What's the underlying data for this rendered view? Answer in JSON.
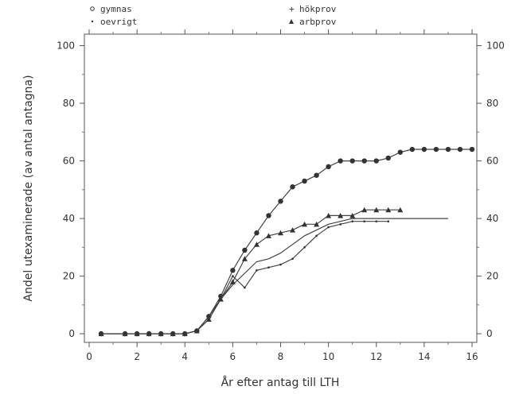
{
  "chart_data": {
    "type": "line",
    "title": "",
    "xlabel": "År efter antag till LTH",
    "ylabel": "Andel utexaminerade (av antal antagna)",
    "xlim": [
      -0.2,
      16.2
    ],
    "ylim": [
      -3,
      104
    ],
    "xticks": [
      0,
      2,
      4,
      6,
      8,
      10,
      12,
      14,
      16
    ],
    "yticks": [
      0,
      20,
      40,
      60,
      80,
      100
    ],
    "grid": false,
    "legend_position": "top",
    "series": [
      {
        "name": "gymnas",
        "marker": "circle",
        "x": [
          0.5,
          1.5,
          2,
          2.5,
          3,
          3.5,
          4,
          4.5,
          5,
          5.5,
          6,
          6.5,
          7,
          7.5,
          8,
          8.5,
          9,
          9.5,
          10,
          10.5,
          11,
          11.5,
          12,
          12.5,
          13,
          13.5,
          14,
          14.5,
          15,
          15.5,
          16
        ],
        "y": [
          0,
          0,
          0,
          0,
          0,
          0,
          0,
          1,
          6,
          13,
          22,
          29,
          35,
          41,
          46,
          51,
          53,
          55,
          58,
          60,
          60,
          60,
          60,
          61,
          63,
          64,
          64,
          64,
          64,
          64,
          64
        ]
      },
      {
        "name": "oevrigt",
        "marker": "dot",
        "x": [
          0.5,
          1.5,
          2,
          2.5,
          3,
          3.5,
          4,
          4.5,
          5,
          5.5,
          6,
          6.5,
          7,
          7.5,
          8,
          8.5,
          9,
          9.5,
          10,
          10.5,
          11,
          11.5,
          12,
          12.5
        ],
        "y": [
          0,
          0,
          0,
          0,
          0,
          0,
          0,
          1,
          6,
          12,
          20,
          16,
          22,
          23,
          24,
          26,
          30,
          34,
          37,
          38,
          39,
          39,
          39,
          39
        ]
      },
      {
        "name": "hökprov",
        "marker": "none",
        "x": [
          0.5,
          1.5,
          2,
          2.5,
          3,
          3.5,
          4,
          4.5,
          5,
          5.5,
          6,
          6.5,
          7,
          7.5,
          8,
          8.5,
          9,
          9.5,
          10,
          10.5,
          11,
          11.5,
          12,
          12.5,
          13,
          13.5,
          14,
          14.5,
          15
        ],
        "y": [
          0,
          0,
          0,
          0,
          0,
          0,
          0,
          1,
          5,
          12,
          17,
          21,
          25,
          26,
          28,
          31,
          34,
          36,
          38,
          39,
          40,
          40,
          40,
          40,
          40,
          40,
          40,
          40,
          40
        ]
      },
      {
        "name": "arbprov",
        "marker": "triangle",
        "x": [
          0.5,
          1.5,
          2,
          2.5,
          3,
          3.5,
          4,
          4.5,
          5,
          5.5,
          6,
          6.5,
          7,
          7.5,
          8,
          8.5,
          9,
          9.5,
          10,
          10.5,
          11,
          11.5,
          12,
          12.5,
          13
        ],
        "y": [
          0,
          0,
          0,
          0,
          0,
          0,
          0,
          1,
          5,
          12,
          18,
          26,
          31,
          34,
          35,
          36,
          38,
          38,
          41,
          41,
          41,
          43,
          43,
          43,
          43
        ]
      }
    ]
  }
}
